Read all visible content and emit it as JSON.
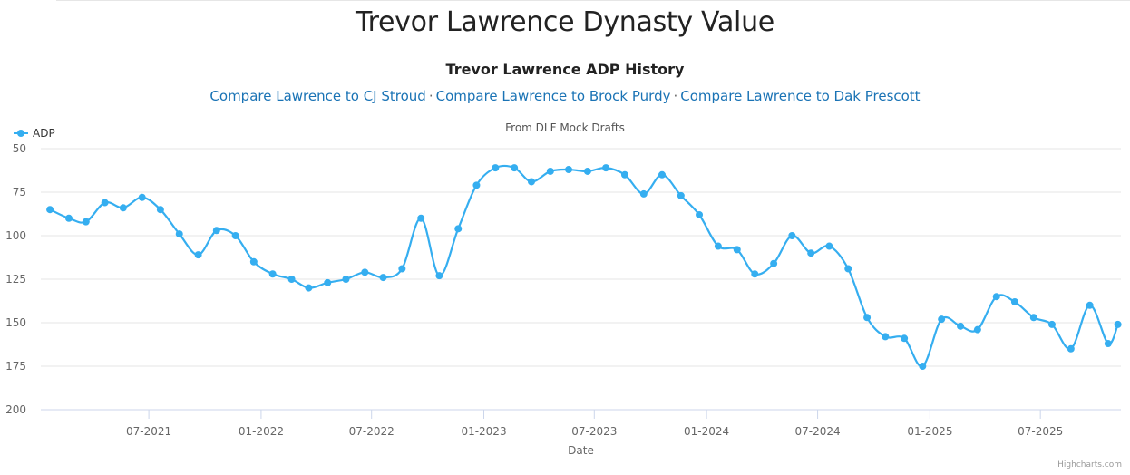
{
  "page_title": "Trevor Lawrence Dynasty Value",
  "compare_links": [
    "Compare Lawrence to CJ Stroud",
    "Compare Lawrence to Brock Purdy",
    "Compare Lawrence to Dak Prescott"
  ],
  "link_separator": "·",
  "credit": "Highcharts.com",
  "colors": {
    "series": "#35aef0",
    "link": "#1a73b5",
    "grid": "#e6e6e6"
  },
  "chart_data": {
    "type": "line",
    "title": "Trevor Lawrence ADP History",
    "subtitle": "From DLF Mock Drafts",
    "xlabel": "Date",
    "ylabel": "",
    "y_reversed": true,
    "ylim": [
      50,
      200
    ],
    "yticks": [
      50,
      75,
      100,
      125,
      150,
      175,
      200
    ],
    "xlim": [
      "2021-01-05",
      "2025-11-10"
    ],
    "xticks": [
      "2021-07-01",
      "2022-01-01",
      "2022-07-01",
      "2023-01-01",
      "2023-07-01",
      "2024-01-01",
      "2024-07-01",
      "2025-01-01",
      "2025-07-01"
    ],
    "xtick_labels": [
      "07-2021",
      "01-2022",
      "07-2022",
      "01-2023",
      "07-2023",
      "01-2024",
      "07-2024",
      "01-2025",
      "07-2025"
    ],
    "grid": true,
    "legend_position": "top-left",
    "series": [
      {
        "name": "ADP",
        "color": "#35aef0",
        "points": [
          [
            "2021-01-20",
            85
          ],
          [
            "2021-02-20",
            90
          ],
          [
            "2021-03-20",
            92
          ],
          [
            "2021-04-20",
            81
          ],
          [
            "2021-05-20",
            84
          ],
          [
            "2021-06-20",
            78
          ],
          [
            "2021-07-20",
            85
          ],
          [
            "2021-08-20",
            99
          ],
          [
            "2021-09-20",
            111
          ],
          [
            "2021-10-20",
            97
          ],
          [
            "2021-11-20",
            100
          ],
          [
            "2021-12-20",
            115
          ],
          [
            "2022-01-20",
            122
          ],
          [
            "2022-02-20",
            125
          ],
          [
            "2022-03-20",
            130
          ],
          [
            "2022-04-20",
            127
          ],
          [
            "2022-05-20",
            125
          ],
          [
            "2022-06-20",
            121
          ],
          [
            "2022-07-20",
            124
          ],
          [
            "2022-08-20",
            119
          ],
          [
            "2022-09-20",
            90
          ],
          [
            "2022-10-20",
            123
          ],
          [
            "2022-11-20",
            96
          ],
          [
            "2022-12-20",
            71
          ],
          [
            "2023-01-20",
            61
          ],
          [
            "2023-02-20",
            61
          ],
          [
            "2023-03-20",
            69
          ],
          [
            "2023-04-20",
            63
          ],
          [
            "2023-05-20",
            62
          ],
          [
            "2023-06-20",
            63
          ],
          [
            "2023-07-20",
            61
          ],
          [
            "2023-08-20",
            65
          ],
          [
            "2023-09-20",
            76
          ],
          [
            "2023-10-20",
            65
          ],
          [
            "2023-11-20",
            77
          ],
          [
            "2023-12-20",
            88
          ],
          [
            "2024-01-20",
            106
          ],
          [
            "2024-02-20",
            108
          ],
          [
            "2024-03-20",
            122
          ],
          [
            "2024-04-20",
            116
          ],
          [
            "2024-05-20",
            100
          ],
          [
            "2024-06-20",
            110
          ],
          [
            "2024-07-20",
            106
          ],
          [
            "2024-08-20",
            119
          ],
          [
            "2024-09-20",
            147
          ],
          [
            "2024-10-20",
            158
          ],
          [
            "2024-11-20",
            159
          ],
          [
            "2024-12-20",
            175
          ],
          [
            "2025-01-20",
            148
          ],
          [
            "2025-02-20",
            152
          ],
          [
            "2025-03-20",
            154
          ],
          [
            "2025-04-20",
            135
          ],
          [
            "2025-05-20",
            138
          ],
          [
            "2025-06-20",
            147
          ],
          [
            "2025-07-20",
            151
          ],
          [
            "2025-08-20",
            165
          ],
          [
            "2025-09-20",
            140
          ],
          [
            "2025-10-20",
            162
          ],
          [
            "2025-11-05",
            151
          ]
        ]
      }
    ]
  }
}
